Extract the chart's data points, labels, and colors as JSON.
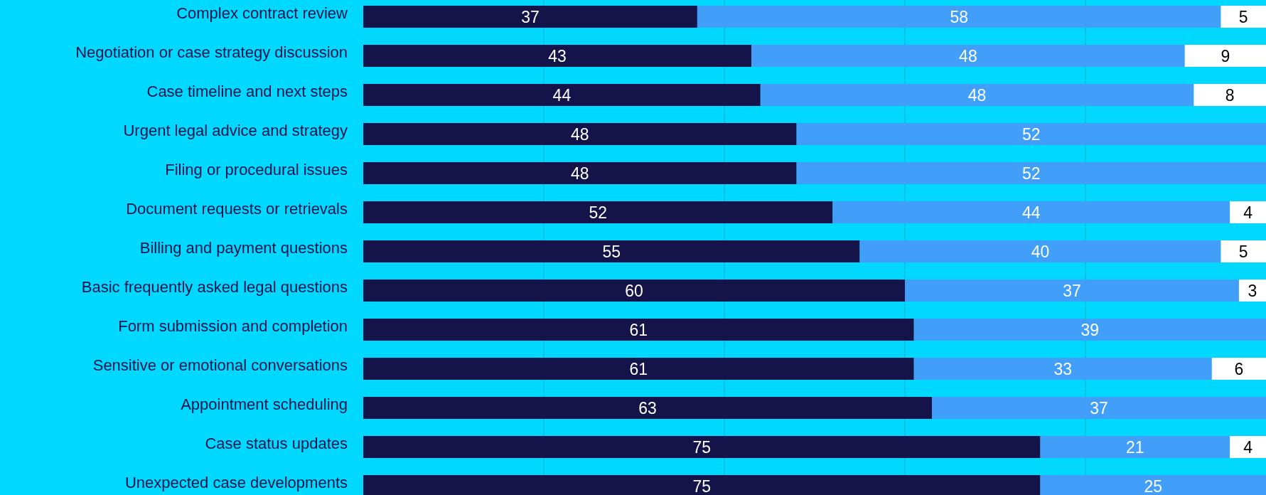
{
  "chart_data": {
    "type": "bar",
    "orientation": "horizontal",
    "stacked": true,
    "data_labels": true,
    "grid": "x",
    "tick_labels": "y",
    "categories": [
      "Complex contract review",
      "Negotiation or case strategy discussion",
      "Case timeline and next steps",
      "Urgent legal advice and strategy",
      "Filing or procedural issues",
      "Document requests or retrievals",
      "Billing and payment questions",
      "Basic frequently asked legal questions",
      "Form submission and completion",
      "Sensitive or emotional conversations",
      "Appointment scheduling",
      "Case status updates",
      "Unexpected case developments"
    ],
    "xlim": [
      0,
      100
    ],
    "xticks": [
      {
        "value": 20,
        "label": null
      },
      {
        "value": 40,
        "label": null
      },
      {
        "value": 60,
        "label": null
      },
      {
        "value": 80,
        "label": null
      }
    ],
    "series": [
      {
        "color": "#14134a",
        "values": [
          37,
          43,
          44,
          48,
          48,
          52,
          55,
          60,
          61,
          61,
          63,
          75,
          75
        ]
      },
      {
        "color": "#419ffa",
        "values": [
          58,
          48,
          48,
          52,
          52,
          44,
          40,
          37,
          39,
          33,
          37,
          21,
          25
        ]
      },
      {
        "color": "#ffffff",
        "values": [
          5,
          9,
          8,
          null,
          null,
          4,
          5,
          3,
          null,
          6,
          null,
          4,
          null
        ]
      }
    ]
  }
}
